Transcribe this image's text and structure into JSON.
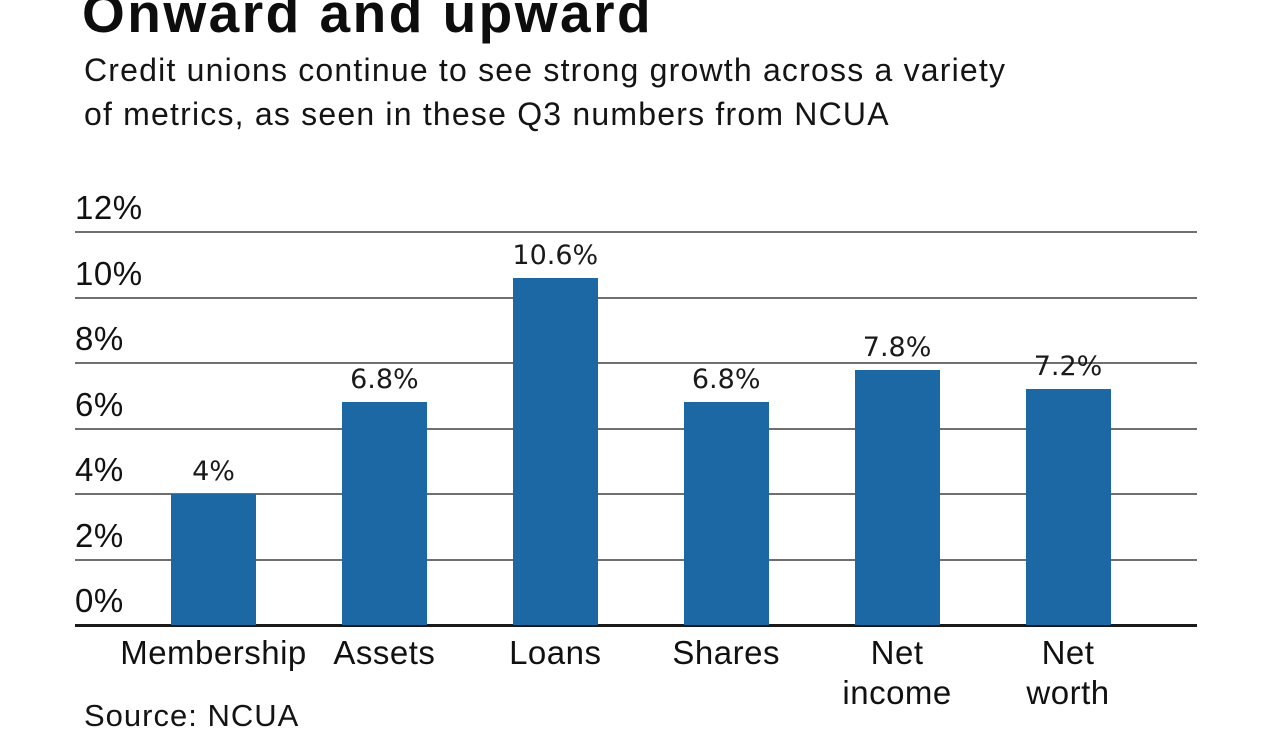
{
  "header": {
    "title": "Onward and upward",
    "subtitle": "Credit unions continue to see strong growth across a variety\nof metrics, as seen in these Q3 numbers from NCUA"
  },
  "footer": {
    "source": "Source: NCUA"
  },
  "chart_data": {
    "type": "bar",
    "title": "Onward and upward",
    "subtitle": "Credit unions continue to see strong growth across a variety of metrics, as seen in these Q3 numbers from NCUA",
    "categories": [
      "Membership",
      "Assets",
      "Loans",
      "Shares",
      "Net income",
      "Net worth"
    ],
    "category_display": [
      "Membership",
      "Assets",
      "Loans",
      "Shares",
      "Net\nincome",
      "Net\nworth"
    ],
    "values": [
      4,
      6.8,
      10.6,
      6.8,
      7.8,
      7.2
    ],
    "value_labels": [
      "4%",
      "6.8%",
      "10.6%",
      "6.8%",
      "7.8%",
      "7.2%"
    ],
    "xlabel": "",
    "ylabel": "",
    "ylim": [
      0,
      12
    ],
    "y_ticks": [
      0,
      2,
      4,
      6,
      8,
      10,
      12
    ],
    "y_tick_labels": [
      "0%",
      "2%",
      "4%",
      "6%",
      "8%",
      "10%",
      "12%"
    ],
    "grid": true,
    "legend": "none",
    "source": "Source: NCUA",
    "bar_color": "#1c68a5",
    "gridline_color": "#6f6f6f",
    "axis_line_color": "#1a1a1a"
  }
}
